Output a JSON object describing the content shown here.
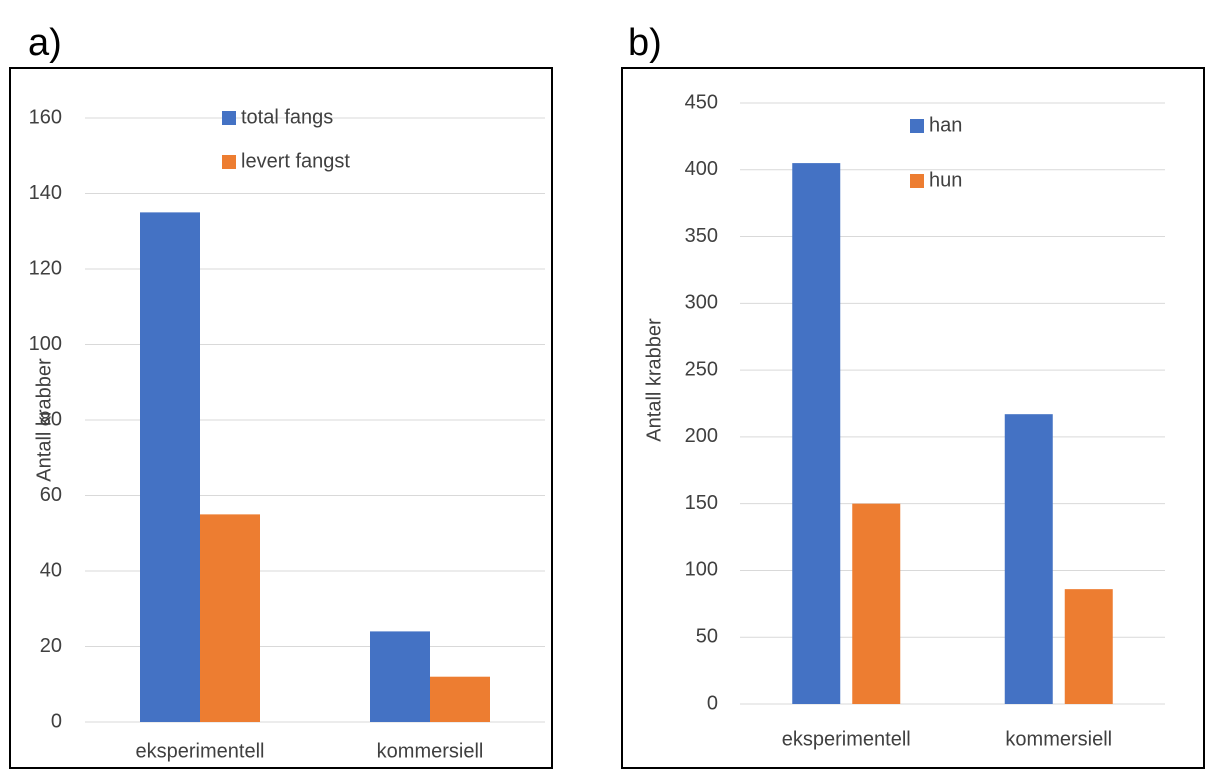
{
  "chart_data": [
    {
      "type": "bar",
      "panel_label": "a)",
      "y_label": "Antall krabber",
      "categories": [
        "eksperimentell",
        "kommersiell"
      ],
      "series": [
        {
          "name": "total fangs",
          "color": "#4472c4",
          "values": [
            135,
            24
          ]
        },
        {
          "name": "levert fangst",
          "color": "#ed7d31",
          "values": [
            55,
            12
          ]
        }
      ],
      "ylim": [
        0,
        160
      ],
      "yticks": [
        0,
        20,
        40,
        60,
        80,
        100,
        120,
        140,
        160
      ],
      "grid": true
    },
    {
      "type": "bar",
      "panel_label": "b)",
      "y_label": "Antall krabber",
      "categories": [
        "eksperimentell",
        "kommersiell"
      ],
      "series": [
        {
          "name": "han",
          "color": "#4472c4",
          "values": [
            405,
            217
          ]
        },
        {
          "name": "hun",
          "color": "#ed7d31",
          "values": [
            150,
            86
          ]
        }
      ],
      "ylim": [
        0,
        450
      ],
      "yticks": [
        0,
        50,
        100,
        150,
        200,
        250,
        300,
        350,
        400,
        450
      ],
      "grid": true
    }
  ]
}
